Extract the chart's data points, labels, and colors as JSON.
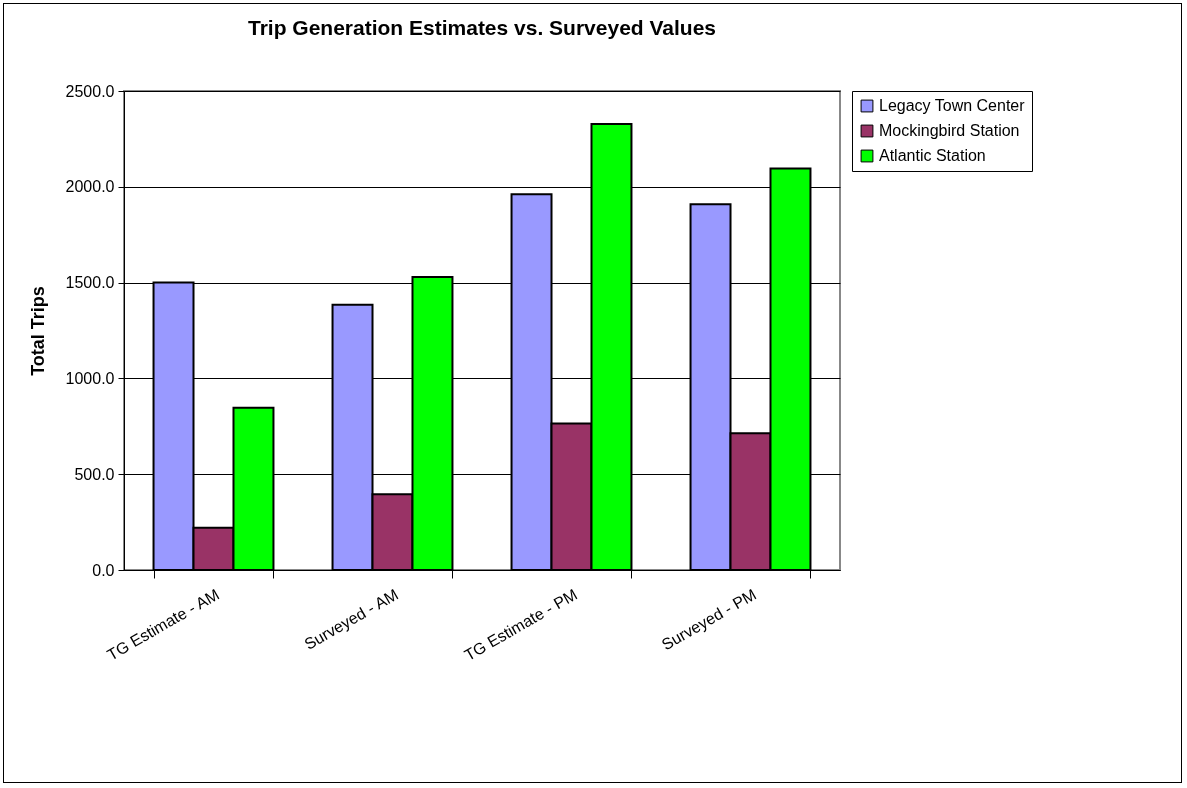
{
  "chart_data": {
    "type": "bar",
    "title": "Trip Generation Estimates vs. Surveyed Values",
    "ylabel": "Total Trips",
    "categories": [
      "TG Estimate - AM",
      "Surveyed - AM",
      "TG Estimate - PM",
      "Surveyed - PM"
    ],
    "series": [
      {
        "name": "Legacy Town Center",
        "color": "#9999ff",
        "values": [
          1500,
          1385,
          1961,
          1909
        ]
      },
      {
        "name": "Mockingbird Station",
        "color": "#993366",
        "values": [
          221,
          395,
          764,
          714
        ]
      },
      {
        "name": "Atlantic Station",
        "color": "#00ff00",
        "values": [
          847,
          1529,
          2328,
          2095
        ]
      }
    ],
    "ylim": [
      0,
      2500
    ],
    "yticks": [
      {
        "value": 0,
        "label": "0.0"
      },
      {
        "value": 500,
        "label": "500.0"
      },
      {
        "value": 1000,
        "label": "1000.0"
      },
      {
        "value": 1500,
        "label": "1500.0"
      },
      {
        "value": 2000,
        "label": "2000.0"
      },
      {
        "value": 2500,
        "label": "2500.0"
      }
    ],
    "grid": "y",
    "legend": "right"
  }
}
